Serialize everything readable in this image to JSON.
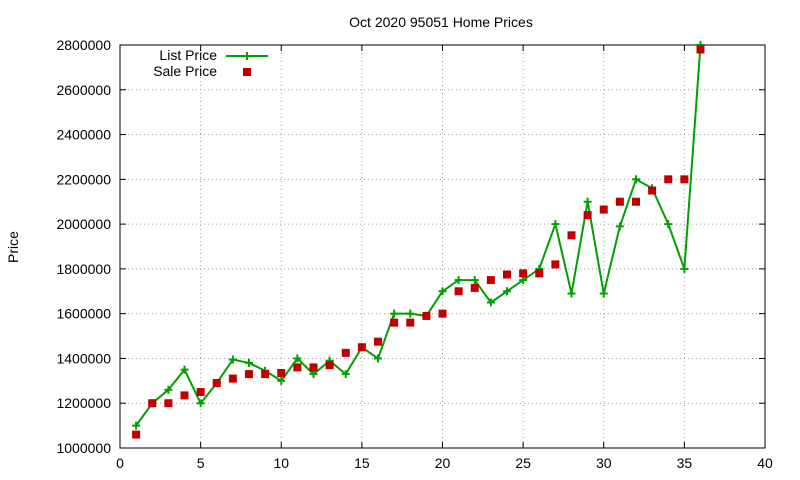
{
  "chart_data": {
    "type": "line",
    "title": "Oct 2020 95051 Home Prices",
    "xlabel": "",
    "ylabel": "Price",
    "xlim": [
      0,
      40
    ],
    "ylim": [
      1000000,
      2800000
    ],
    "xticks": [
      0,
      5,
      10,
      15,
      20,
      25,
      30,
      35,
      40
    ],
    "yticks": [
      1000000,
      1200000,
      1400000,
      1600000,
      1800000,
      2000000,
      2200000,
      2400000,
      2600000,
      2800000
    ],
    "xtick_labels": [
      "0",
      "5",
      "10",
      "15",
      "20",
      "25",
      "30",
      "35",
      "40"
    ],
    "ytick_labels": [
      "1000000",
      "1200000",
      "1400000",
      "1600000",
      "1800000",
      "2000000",
      "2200000",
      "2400000",
      "2600000",
      "2800000"
    ],
    "grid": true,
    "legend_position": "top-left",
    "series": [
      {
        "name": "List Price",
        "style": "line-with-plus-markers",
        "color": "#00a000",
        "x": [
          1,
          2,
          3,
          4,
          5,
          6,
          7,
          8,
          9,
          10,
          11,
          12,
          13,
          14,
          15,
          16,
          17,
          18,
          19,
          20,
          21,
          22,
          23,
          24,
          25,
          26,
          27,
          28,
          29,
          30,
          31,
          32,
          33,
          34,
          35,
          36
        ],
        "y": [
          1100000,
          1200000,
          1260000,
          1350000,
          1200000,
          1290000,
          1395000,
          1380000,
          1345000,
          1300000,
          1400000,
          1330000,
          1390000,
          1330000,
          1450000,
          1400000,
          1600000,
          1600000,
          1590000,
          1700000,
          1750000,
          1750000,
          1650000,
          1700000,
          1750000,
          1800000,
          2000000,
          1690000,
          2100000,
          1690000,
          1990000,
          2200000,
          2160000,
          2000000,
          1800000,
          2800000
        ]
      },
      {
        "name": "Sale Price",
        "style": "square-markers",
        "color": "#c00000",
        "x": [
          1,
          2,
          3,
          4,
          5,
          6,
          7,
          8,
          9,
          10,
          11,
          12,
          13,
          14,
          15,
          16,
          17,
          18,
          19,
          20,
          21,
          22,
          23,
          24,
          25,
          26,
          27,
          28,
          29,
          30,
          31,
          32,
          33,
          34,
          35,
          36
        ],
        "y": [
          1060000,
          1200000,
          1200000,
          1235000,
          1250000,
          1290000,
          1310000,
          1330000,
          1330000,
          1335000,
          1360000,
          1360000,
          1370000,
          1425000,
          1450000,
          1475000,
          1560000,
          1560000,
          1590000,
          1600000,
          1700000,
          1715000,
          1750000,
          1775000,
          1780000,
          1780000,
          1820000,
          1950000,
          2040000,
          2065000,
          2100000,
          2100000,
          2150000,
          2200000,
          2200000,
          2780000
        ]
      }
    ]
  }
}
